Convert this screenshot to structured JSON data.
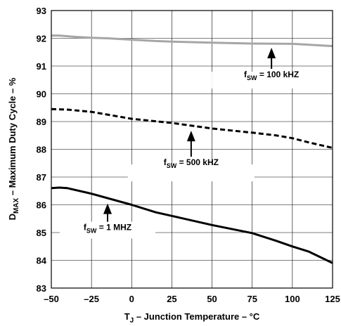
{
  "chart_data": {
    "type": "line",
    "xlabel": {
      "main": "T",
      "sub": "J",
      "rest": " – Junction Temperature – °C"
    },
    "ylabel": {
      "main": "D",
      "sub": "MAX",
      "rest": " – Maximum Duty Cycle – %"
    },
    "xlim": [
      -50,
      125
    ],
    "ylim": [
      83,
      93
    ],
    "xticks": [
      -50,
      -25,
      0,
      25,
      50,
      75,
      100,
      125
    ],
    "yticks": [
      83,
      84,
      85,
      86,
      87,
      88,
      89,
      90,
      91,
      92,
      93
    ],
    "grid": true,
    "series": [
      {
        "name": "f_SW = 100 kHZ",
        "color": "#a6a6a6",
        "style": "solid",
        "x": [
          -50,
          -45,
          -35,
          -25,
          -15,
          0,
          15,
          25,
          50,
          75,
          100,
          110,
          125
        ],
        "y": [
          92.1,
          92.1,
          92.05,
          92.02,
          92.0,
          91.95,
          91.9,
          91.88,
          91.84,
          91.81,
          91.8,
          91.77,
          91.72
        ]
      },
      {
        "name": "f_SW = 500 kHZ",
        "color": "#000000",
        "style": "dashed",
        "x": [
          -50,
          -40,
          -25,
          0,
          25,
          50,
          75,
          90,
          100,
          110,
          125
        ],
        "y": [
          89.45,
          89.43,
          89.35,
          89.1,
          88.95,
          88.75,
          88.6,
          88.5,
          88.4,
          88.25,
          88.05
        ]
      },
      {
        "name": "f_SW = 1 MHZ",
        "color": "#000000",
        "style": "solid",
        "x": [
          -50,
          -45,
          -40,
          -25,
          0,
          15,
          25,
          50,
          75,
          90,
          100,
          110,
          125
        ],
        "y": [
          86.6,
          86.62,
          86.6,
          86.4,
          86.0,
          85.73,
          85.6,
          85.27,
          84.98,
          84.7,
          84.5,
          84.32,
          83.9
        ]
      }
    ],
    "annotations": [
      {
        "sym": "f",
        "sub": "SW",
        "rest": " = 100 kHZ",
        "arrow_x": 87,
        "arrow_y": 91.81
      },
      {
        "sym": "f",
        "sub": "SW",
        "rest": " = 500 kHZ",
        "arrow_x": 37,
        "arrow_y": 88.82
      },
      {
        "sym": "f",
        "sub": "SW",
        "rest": " = 1 MHZ",
        "arrow_x": -15,
        "arrow_y": 86.2
      }
    ]
  }
}
